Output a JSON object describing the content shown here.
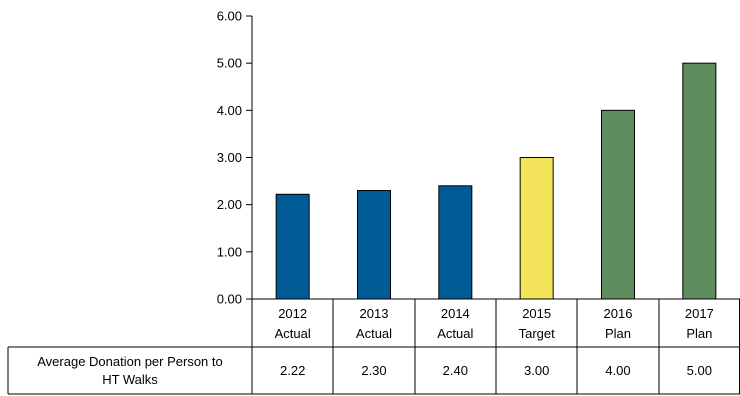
{
  "chart_data": {
    "type": "bar",
    "categories": [
      [
        "2012",
        "Actual"
      ],
      [
        "2013",
        "Actual"
      ],
      [
        "2014",
        "Actual"
      ],
      [
        "2015",
        "Target"
      ],
      [
        "2016",
        "Plan"
      ],
      [
        "2017",
        "Plan"
      ]
    ],
    "values": [
      2.22,
      2.3,
      2.4,
      3.0,
      4.0,
      5.0
    ],
    "value_labels": [
      "2.22",
      "2.30",
      "2.40",
      "3.00",
      "4.00",
      "5.00"
    ],
    "bar_colors": [
      "#005a96",
      "#005a96",
      "#005a96",
      "#f2e35a",
      "#5f8c5f",
      "#5f8c5f"
    ],
    "series": [
      {
        "name_lines": [
          "Average Donation  per Person to",
          "HT Walks"
        ],
        "values": [
          2.22,
          2.3,
          2.4,
          3.0,
          4.0,
          5.0
        ]
      }
    ],
    "ylim": [
      0,
      6
    ],
    "ytick_labels": [
      "0.00",
      "1.00",
      "2.00",
      "3.00",
      "4.00",
      "5.00",
      "6.00"
    ],
    "grid": false,
    "data_table": true
  }
}
